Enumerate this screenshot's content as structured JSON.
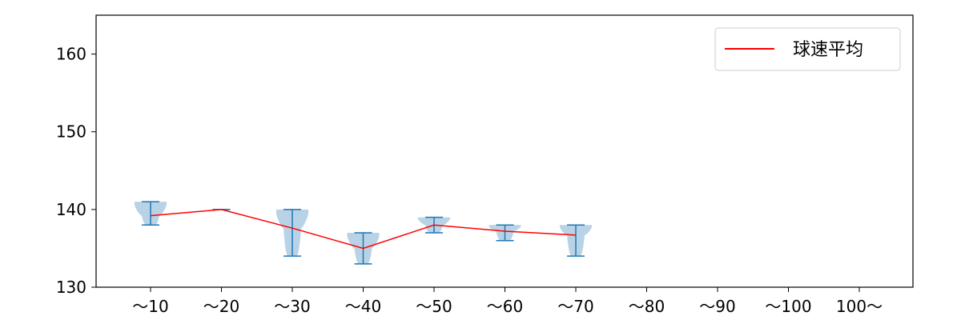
{
  "chart_data": {
    "type": "violin",
    "categories": [
      "～10",
      "～20",
      "～30",
      "～40",
      "～50",
      "～60",
      "～70",
      "～80",
      "～90",
      "～100",
      "100～"
    ],
    "ylim": [
      130,
      165
    ],
    "yticks": [
      130,
      140,
      150,
      160
    ],
    "grid": false,
    "legend": {
      "placement": "top-right",
      "label": "球速平均",
      "color": "#ff0000"
    },
    "violin_color": "#1f77b4",
    "violin_fill": "#a8c8e0",
    "violins": [
      {
        "category": "～10",
        "min": 138,
        "max": 141,
        "mean": 139.2
      },
      {
        "category": "～20",
        "min": 140,
        "max": 140,
        "mean": 140.0
      },
      {
        "category": "～30",
        "min": 134,
        "max": 140,
        "mean": 137.6
      },
      {
        "category": "～40",
        "min": 133,
        "max": 137,
        "mean": 135.0
      },
      {
        "category": "～50",
        "min": 137,
        "max": 139,
        "mean": 138.0
      },
      {
        "category": "～60",
        "min": 136,
        "max": 138,
        "mean": 137.2
      },
      {
        "category": "～70",
        "min": 134,
        "max": 138,
        "mean": 136.7
      }
    ],
    "series": [
      {
        "name": "球速平均",
        "color": "#ff0000",
        "values": [
          139.2,
          140.0,
          137.6,
          135.0,
          138.0,
          137.2,
          136.7,
          null,
          null,
          null,
          null
        ]
      }
    ],
    "xlabel": "",
    "ylabel": ""
  }
}
